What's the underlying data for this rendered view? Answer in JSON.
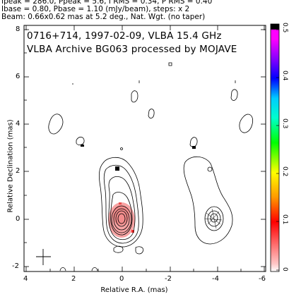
{
  "header": {
    "line1": "Ipeak = 286.0, Ppeak = 5.6, I RMS = 0.34, P RMS = 0.40",
    "line2": "Ibase = 0.80, Pbase = 1.10 (mJy/beam), steps: x 2",
    "line3": "Beam: 0.66x0.62 mas at 5.2 deg., Nat. Wgt. (no taper)"
  },
  "plot": {
    "title_line1": "0716+714, 1997-02-09, VLBA 15.4 GHz",
    "title_line2": "VLBA Archive BG063 processed by MOJAVE",
    "xlabel": "Relative R.A. (mas)",
    "ylabel": "Relative Declination (mas)",
    "x_ticks": [
      "4",
      "2",
      "0",
      "-2",
      "-4",
      "-6"
    ],
    "y_ticks": [
      "8",
      "6",
      "4",
      "2",
      "0",
      "-2"
    ]
  },
  "colorbar": {
    "ticks": [
      "0.5",
      "0.4",
      "0.3",
      "0.2",
      "0.1",
      "0"
    ],
    "colors": [
      "#000000",
      "#ff00ff",
      "#0000ff",
      "#00ffff",
      "#00ff00",
      "#ffff00",
      "#ff0000",
      "#ffc0c0"
    ]
  }
}
